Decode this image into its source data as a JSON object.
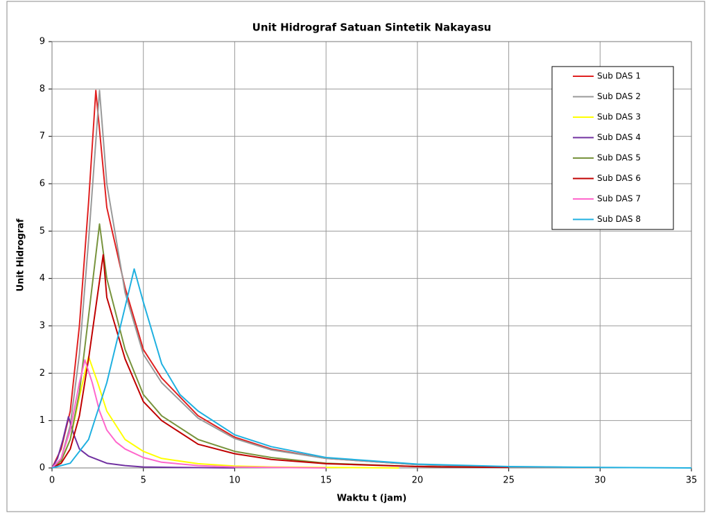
{
  "chart_data": {
    "type": "line",
    "title": "Unit Hidrograf Satuan Sintetik Nakayasu",
    "xlabel": "Waktu  t (jam)",
    "ylabel": "Unit  Hidrograf",
    "xlim": [
      0,
      35
    ],
    "ylim": [
      0,
      9
    ],
    "xticks": [
      0,
      5,
      10,
      15,
      20,
      25,
      30,
      35
    ],
    "yticks": [
      0,
      1,
      2,
      3,
      4,
      5,
      6,
      7,
      8,
      9
    ],
    "grid": true,
    "legend": "upper right",
    "series": [
      {
        "name": "Sub DAS 1",
        "color": "#e02020",
        "x": [
          0,
          0.5,
          1,
          1.5,
          2,
          2.4,
          3,
          4,
          5,
          6,
          8,
          10,
          12,
          15,
          20,
          25,
          30
        ],
        "values": [
          0,
          0.4,
          1.2,
          3.0,
          5.6,
          7.97,
          5.5,
          3.8,
          2.5,
          1.9,
          1.1,
          0.65,
          0.4,
          0.2,
          0.07,
          0.02,
          0.01
        ]
      },
      {
        "name": "Sub DAS 2",
        "color": "#999999",
        "x": [
          0,
          0.5,
          1,
          1.5,
          2,
          2.6,
          3,
          4,
          5,
          6,
          8,
          10,
          12,
          15,
          20,
          25,
          30
        ],
        "values": [
          0,
          0.2,
          0.9,
          2.4,
          4.8,
          7.97,
          6.0,
          3.7,
          2.4,
          1.8,
          1.05,
          0.62,
          0.38,
          0.2,
          0.07,
          0.02,
          0.01
        ]
      },
      {
        "name": "Sub DAS 3",
        "color": "#ffff00",
        "x": [
          0,
          0.5,
          1,
          1.5,
          2,
          2.5,
          3,
          4,
          5,
          6,
          8,
          10,
          12,
          15,
          19
        ],
        "values": [
          0,
          0.15,
          0.6,
          1.5,
          2.35,
          1.8,
          1.2,
          0.6,
          0.35,
          0.2,
          0.09,
          0.04,
          0.02,
          0.01,
          0
        ]
      },
      {
        "name": "Sub DAS 4",
        "color": "#7030a0",
        "x": [
          0,
          0.3,
          0.6,
          0.9,
          1.2,
          1.5,
          2,
          3,
          4,
          5,
          7,
          10
        ],
        "values": [
          0,
          0.2,
          0.6,
          1.08,
          0.7,
          0.4,
          0.25,
          0.1,
          0.05,
          0.02,
          0.01,
          0
        ]
      },
      {
        "name": "Sub DAS 5",
        "color": "#77933c",
        "x": [
          0,
          0.5,
          1,
          1.5,
          2,
          2.6,
          3,
          4,
          5,
          6,
          8,
          10,
          12,
          15,
          20,
          25
        ],
        "values": [
          0,
          0.15,
          0.6,
          1.6,
          3.2,
          5.15,
          4.0,
          2.5,
          1.55,
          1.1,
          0.6,
          0.35,
          0.22,
          0.1,
          0.03,
          0.01
        ]
      },
      {
        "name": "Sub DAS 6",
        "color": "#c00000",
        "x": [
          0,
          0.5,
          1,
          1.5,
          2,
          2.8,
          3,
          4,
          5,
          6,
          8,
          10,
          12,
          15,
          20,
          25
        ],
        "values": [
          0,
          0.1,
          0.4,
          1.1,
          2.3,
          4.5,
          3.6,
          2.3,
          1.4,
          1.0,
          0.5,
          0.3,
          0.18,
          0.09,
          0.03,
          0.01
        ]
      },
      {
        "name": "Sub DAS 7",
        "color": "#ff66cc",
        "x": [
          0,
          0.5,
          1,
          1.5,
          1.8,
          2.2,
          2.6,
          3,
          3.5,
          4,
          5,
          6,
          8,
          10,
          12,
          15
        ],
        "values": [
          0,
          0.2,
          0.8,
          1.8,
          2.28,
          1.8,
          1.2,
          0.8,
          0.55,
          0.4,
          0.22,
          0.12,
          0.05,
          0.02,
          0.01,
          0
        ]
      },
      {
        "name": "Sub DAS 8",
        "color": "#1fb0e0",
        "x": [
          0,
          1,
          2,
          3,
          4,
          4.5,
          5,
          6,
          7,
          8,
          10,
          12,
          15,
          20,
          25,
          30,
          35
        ],
        "values": [
          0,
          0.1,
          0.6,
          1.8,
          3.4,
          4.2,
          3.5,
          2.2,
          1.55,
          1.2,
          0.7,
          0.45,
          0.22,
          0.08,
          0.03,
          0.01,
          0
        ]
      }
    ]
  }
}
